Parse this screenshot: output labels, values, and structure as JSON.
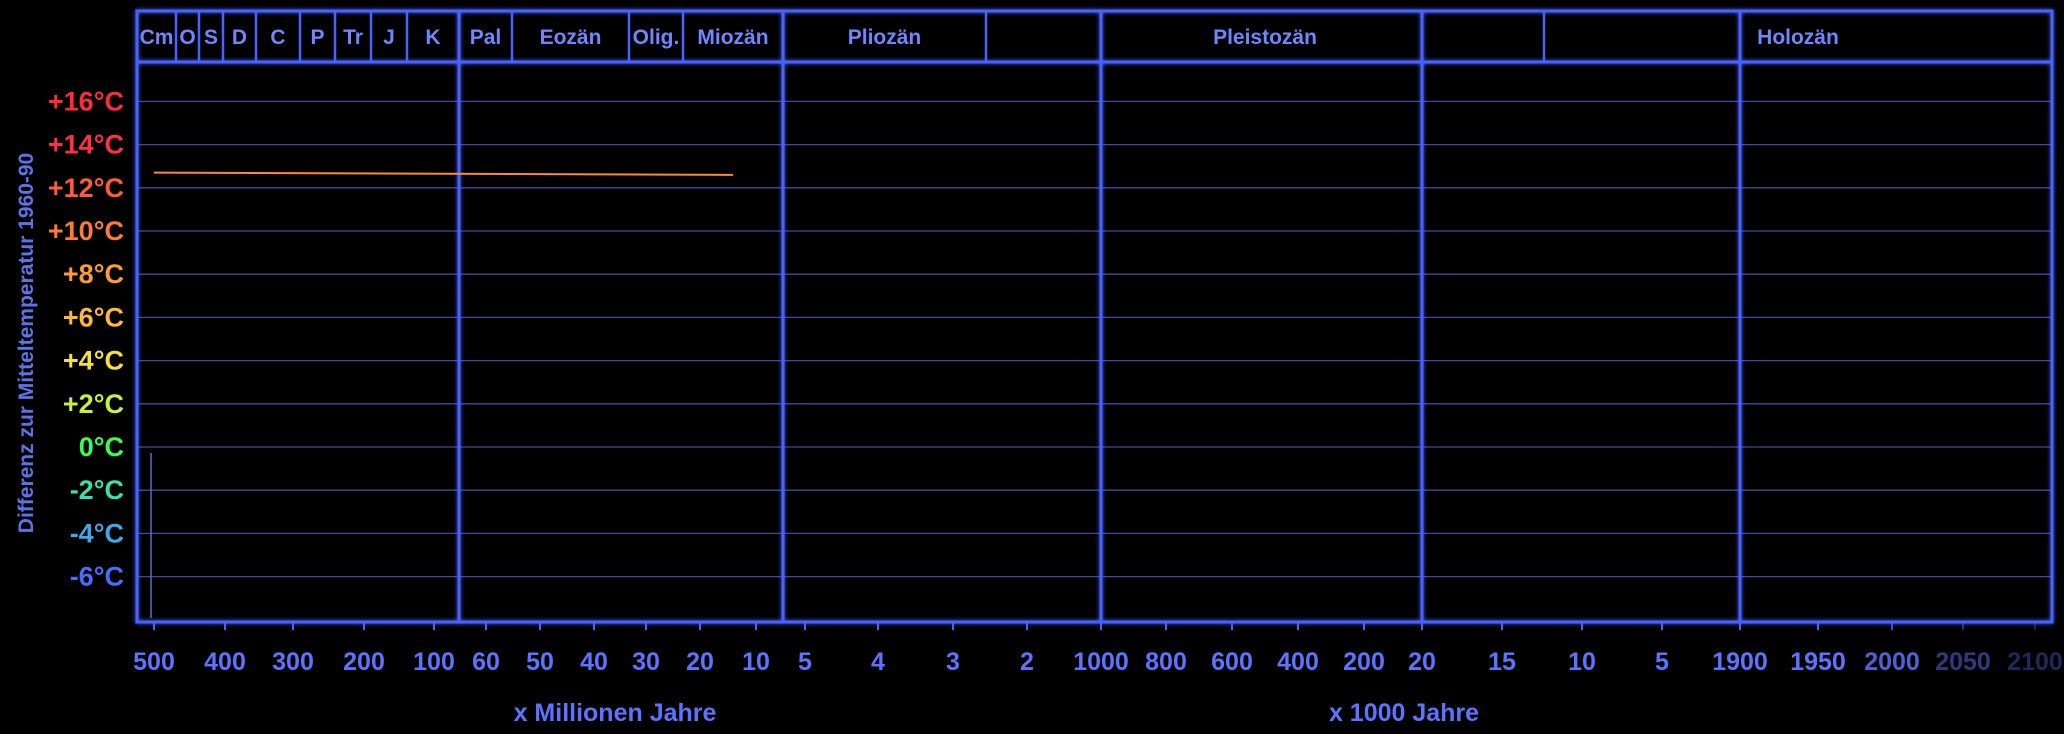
{
  "chart_data": {
    "type": "line",
    "ylabel": "Differenz zur Mitteltemperatur 1960-90",
    "y_ticks": [
      {
        "label": "+16°C",
        "value": 16,
        "color": "#ff2a3c"
      },
      {
        "label": "+14°C",
        "value": 14,
        "color": "#ff2f45"
      },
      {
        "label": "+12°C",
        "value": 12,
        "color": "#ff5a3a"
      },
      {
        "label": "+10°C",
        "value": 10,
        "color": "#ff7a35"
      },
      {
        "label": "+8°C",
        "value": 8,
        "color": "#ff9a35"
      },
      {
        "label": "+6°C",
        "value": 6,
        "color": "#ffb83a"
      },
      {
        "label": "+4°C",
        "value": 4,
        "color": "#f4e040"
      },
      {
        "label": "+2°C",
        "value": 2,
        "color": "#c8f040"
      },
      {
        "label": "0°C",
        "value": 0,
        "color": "#33ff55"
      },
      {
        "label": "-2°C",
        "value": -2,
        "color": "#39e0b0"
      },
      {
        "label": "-4°C",
        "value": -4,
        "color": "#3fa8e8"
      },
      {
        "label": "-6°C",
        "value": -6,
        "color": "#4a6bff"
      }
    ],
    "ylim": [
      -8,
      18
    ],
    "periods": [
      "Cm",
      "O",
      "S",
      "D",
      "C",
      "P",
      "Tr",
      "J",
      "K",
      "Pal",
      "Eozän",
      "Olig.",
      "Miozän",
      "Pliozän",
      "Pleistozän",
      "Holozän"
    ],
    "x_tick_groups": [
      {
        "labels": [
          "500",
          "400",
          "300",
          "200",
          "100"
        ]
      },
      {
        "labels": [
          "60",
          "50",
          "40",
          "30",
          "20",
          "10"
        ]
      },
      {
        "labels": [
          "5",
          "4",
          "3",
          "2"
        ]
      },
      {
        "labels": [
          "1000",
          "800",
          "600",
          "400",
          "200"
        ]
      },
      {
        "labels": [
          "20",
          "15",
          "10",
          "5"
        ]
      },
      {
        "labels": [
          "1900",
          "1950",
          "2000",
          "2050",
          "2100"
        ]
      }
    ],
    "xlabel_left": "x Millionen Jahre",
    "xlabel_right": "x 1000 Jahre",
    "series": [
      {
        "color": "#ff8a30",
        "points": [
          {
            "x": "500",
            "y": 12.7
          },
          {
            "x": "15",
            "y": 12.6
          }
        ]
      }
    ],
    "grid": true
  },
  "colors": {
    "frame": "#4a62ff",
    "grid": "#3c4b9a",
    "text": "#6f86ff",
    "background": "#000000"
  }
}
